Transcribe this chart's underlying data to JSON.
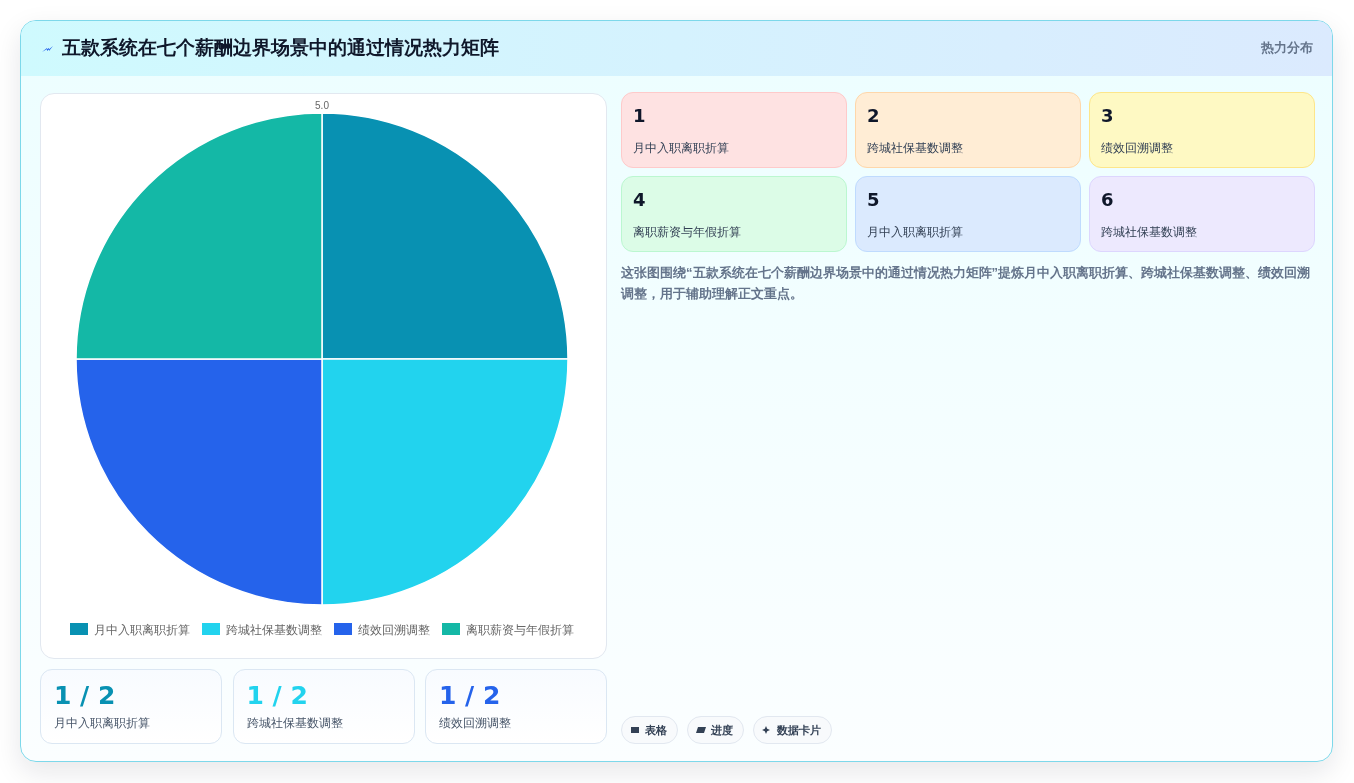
{
  "chart_data": {
    "type": "pie",
    "title": "五款系统在七个薪酬边界场景中的通过情况热力矩阵",
    "categories": [
      "月中入职离职折算",
      "跨城社保基数调整",
      "绩效回溯调整",
      "离职薪资与年假折算"
    ],
    "values": [
      25,
      25,
      25,
      25
    ],
    "colors": [
      "#0891b2",
      "#22d3ee",
      "#2563eb",
      "#14b8a6"
    ],
    "legend": "bottom",
    "annotations": [
      "热力分布",
      "1",
      "月中入职离职折算",
      "2",
      "跨城社保基数调整",
      "3",
      "绩效回溯调整",
      "4",
      "离职薪资与年假折算",
      "5",
      "月中入职离职折算",
      "6",
      "跨城社保基数调整",
      "这张图围绕“五款系统在七个薪酬边界场景中的通过情况热力矩阵”提炼月中入职离职折算、跨城社保基数调整、绩效回溯调整，用于辅助理解正文重点。",
      "1 / 2",
      "月中入职离职折算",
      "1 / 2",
      "跨城社保基数调整",
      "1 / 2",
      "绩效回溯调整",
      "表格",
      "进度",
      "数据卡片",
      "5.0"
    ]
  }
}
